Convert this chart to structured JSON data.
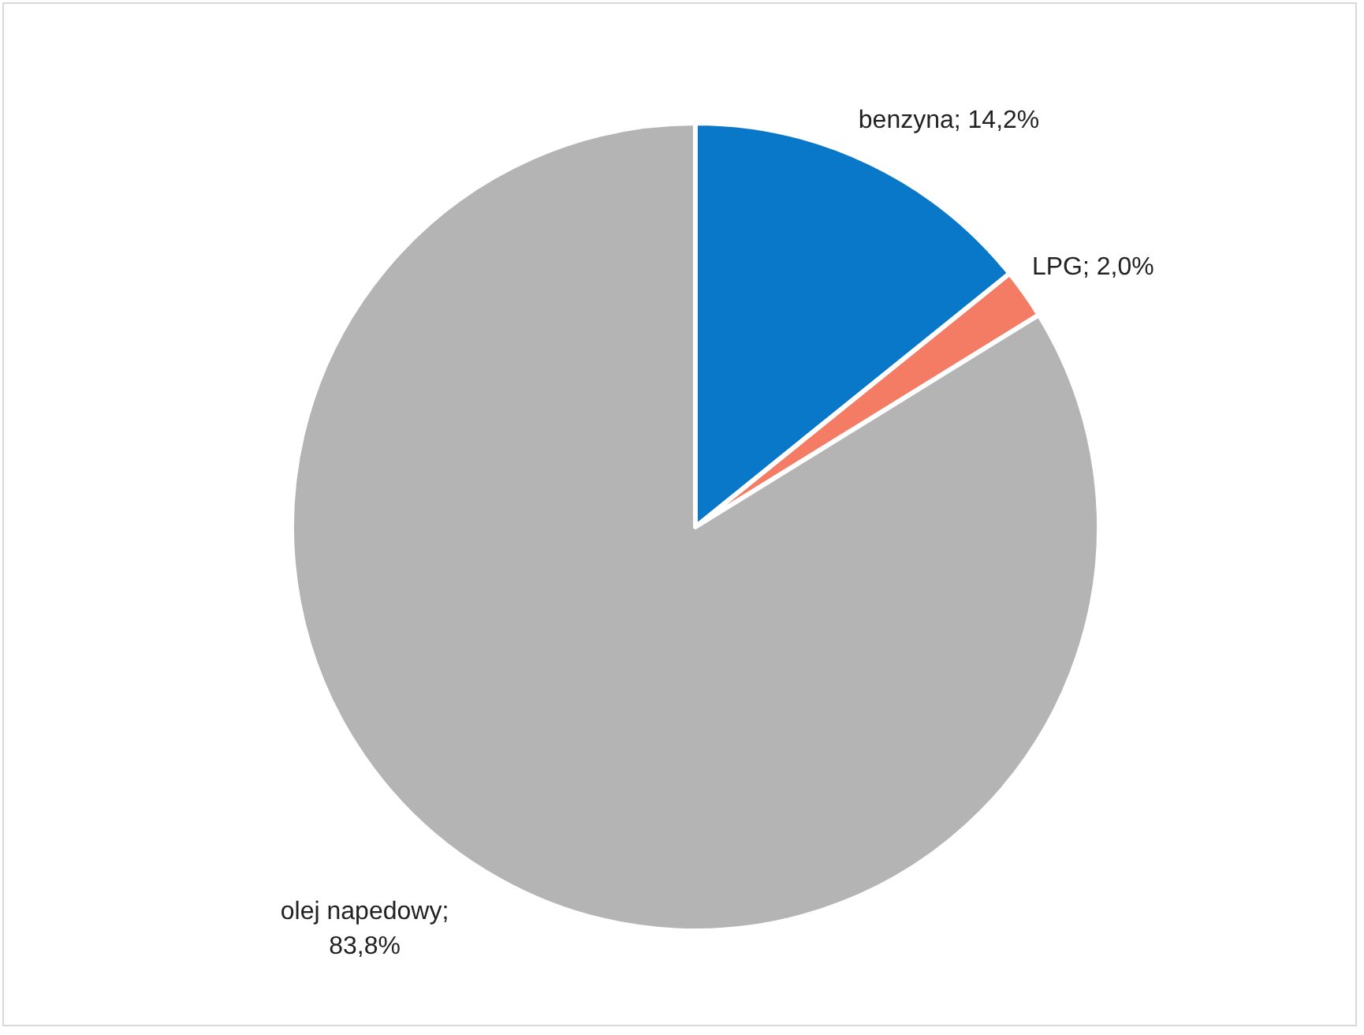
{
  "chart_data": {
    "type": "pie",
    "categories": [
      "benzyna",
      "LPG",
      "olej napedowy"
    ],
    "values": [
      14.2,
      2.0,
      83.8
    ],
    "value_labels": [
      "; 14,2%",
      "; 2,0%",
      ";\n83,8%"
    ],
    "colors": [
      "#0a78c8",
      "#f47c64",
      "#b4b4b4"
    ],
    "legend": false
  }
}
